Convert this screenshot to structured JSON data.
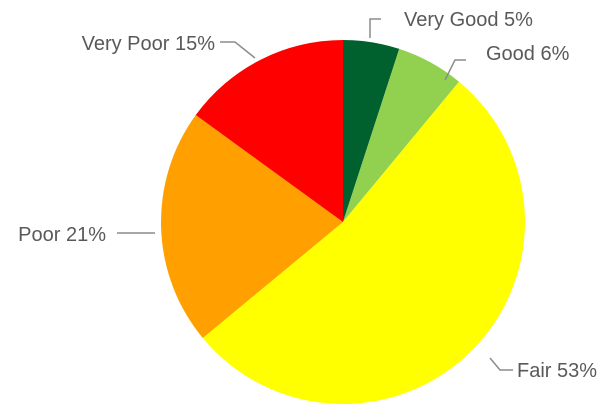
{
  "chart_data": {
    "type": "pie",
    "title": "",
    "start_angle_deg": 0,
    "direction": "clockwise",
    "slices": [
      {
        "label": "Very Good",
        "value": 5,
        "display": "Very Good 5%",
        "color": "#00612E"
      },
      {
        "label": "Good",
        "value": 6,
        "display": "Good 6%",
        "color": "#92D050"
      },
      {
        "label": "Fair",
        "value": 53,
        "display": "Fair 53%",
        "color": "#FFFF00"
      },
      {
        "label": "Poor",
        "value": 21,
        "display": "Poor 21%",
        "color": "#FFA000"
      },
      {
        "label": "Very Poor",
        "value": 15,
        "display": "Very Poor 15%",
        "color": "#FF0000"
      }
    ],
    "legend": "none",
    "labels": "outside-with-leader-lines"
  }
}
